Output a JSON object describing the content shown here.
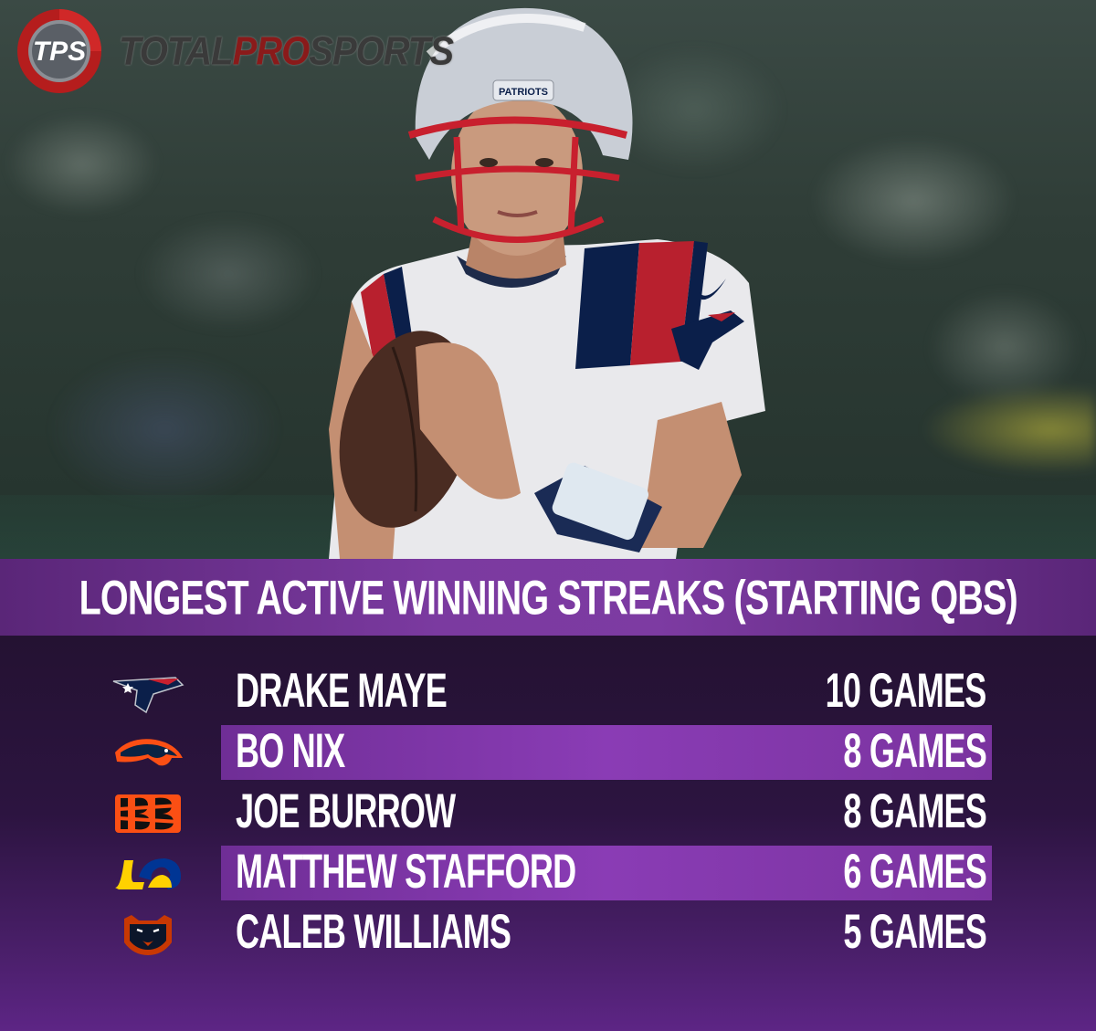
{
  "brand": {
    "badge_text": "TPS",
    "name_part1": "TOTAL",
    "name_part2": "PRO",
    "name_part3": "SPORTS"
  },
  "photo": {
    "helmet_text": "PATRIOTS"
  },
  "title": "LONGEST ACTIVE WINNING STREAKS (STARTING QBS)",
  "rows": [
    {
      "team_logo": "patriots-logo",
      "name": "DRAKE MAYE",
      "streak": "10 GAMES",
      "highlighted": false
    },
    {
      "team_logo": "broncos-logo",
      "name": "BO NIX",
      "streak": "8 GAMES",
      "highlighted": true
    },
    {
      "team_logo": "bengals-logo",
      "name": "JOE BURROW",
      "streak": "8 GAMES",
      "highlighted": false
    },
    {
      "team_logo": "rams-logo",
      "name": "MATTHEW STAFFORD",
      "streak": "6 GAMES",
      "highlighted": true
    },
    {
      "team_logo": "bears-logo",
      "name": "CALEB WILLIAMS",
      "streak": "5 GAMES",
      "highlighted": false
    }
  ],
  "colors": {
    "title_bar": "#7b3aa0",
    "highlight_stripe": "#8a3cb5",
    "list_bg": "#2c1440",
    "text": "#ffffff"
  }
}
